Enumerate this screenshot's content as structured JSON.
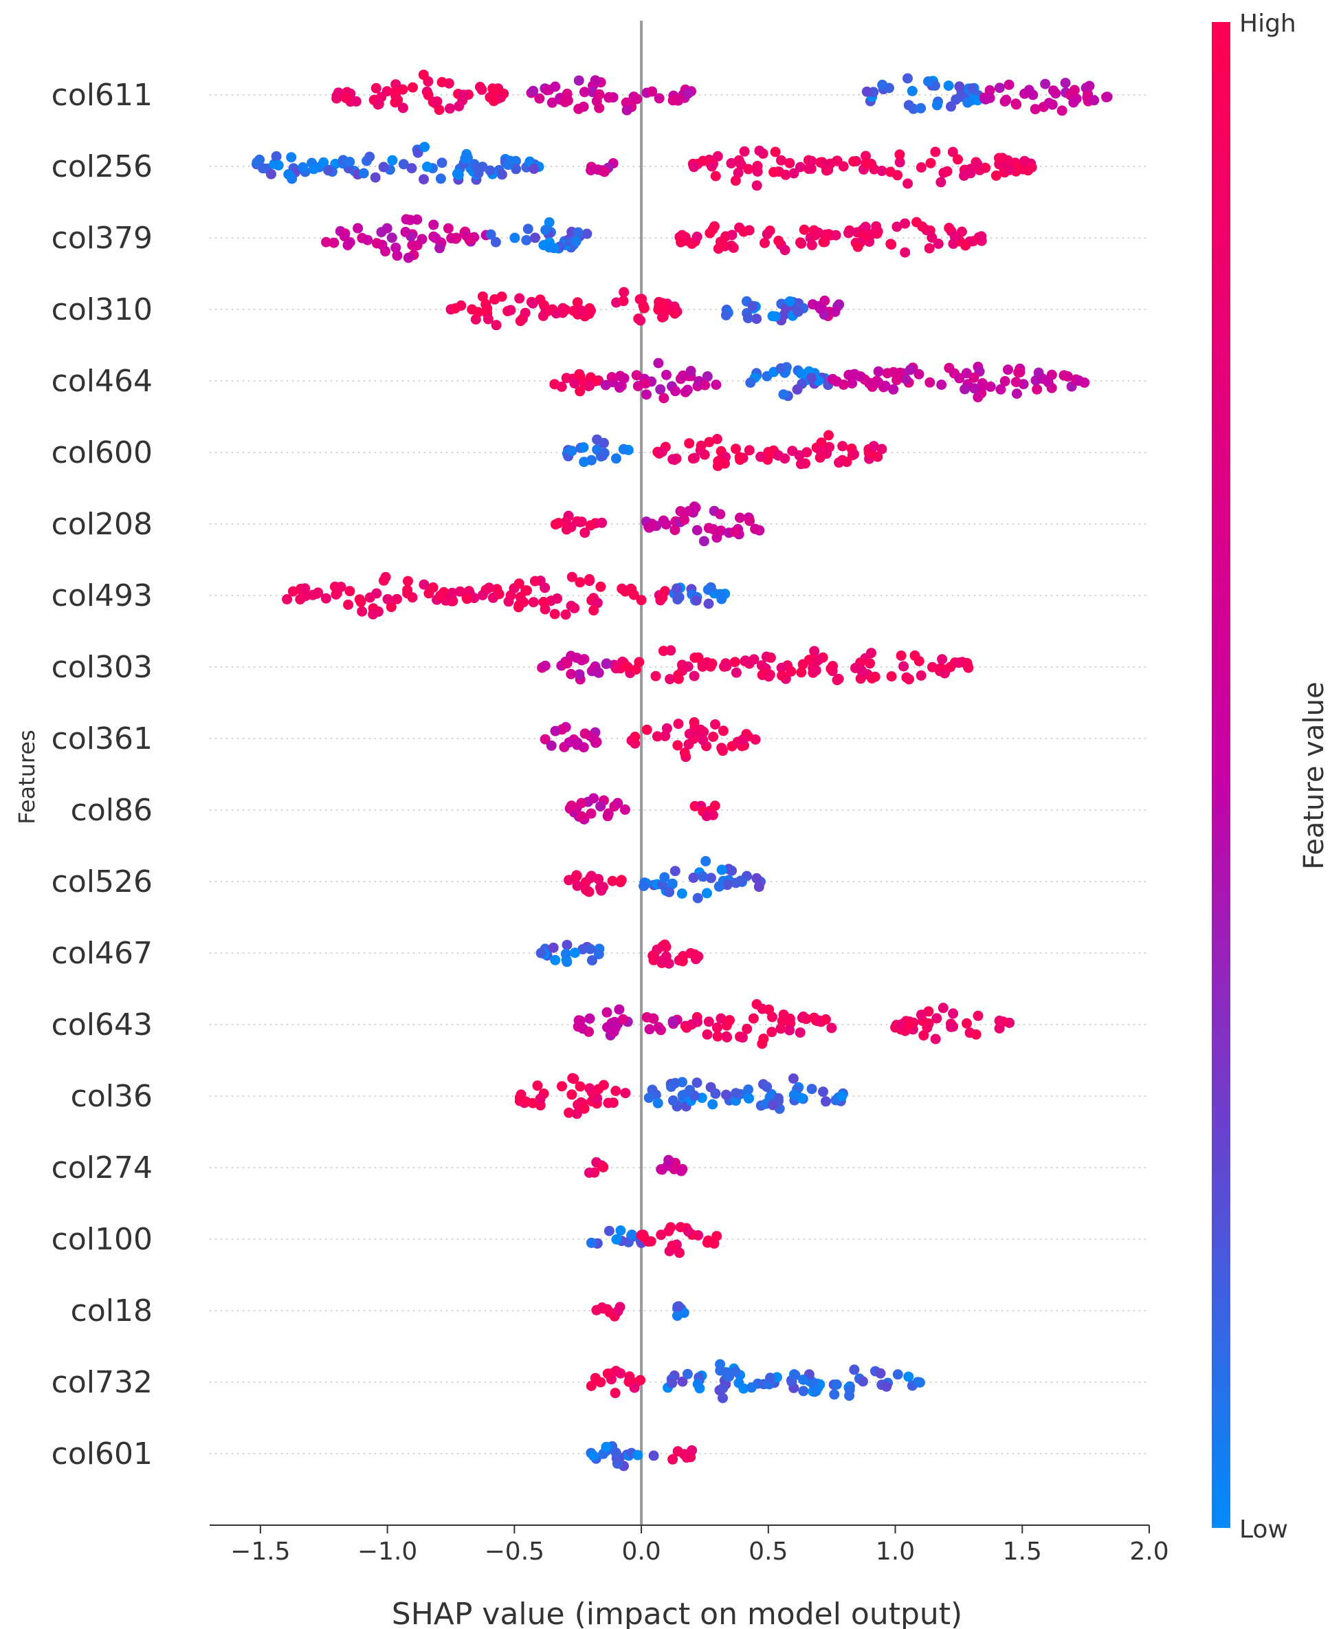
{
  "chart_data": {
    "type": "scatter",
    "subtype": "beeswarm",
    "xlabel": "SHAP value (impact on model output)",
    "ylabel": "Features",
    "xlim": [
      -1.7,
      2.0
    ],
    "xticks": [
      "−1.5",
      "−1.0",
      "−0.5",
      "0.0",
      "0.5",
      "1.0",
      "1.5",
      "2.0"
    ],
    "xtick_values": [
      -1.5,
      -1.0,
      -0.5,
      0.0,
      0.5,
      1.0,
      1.5,
      2.0
    ],
    "colorbar": {
      "label": "Feature value",
      "high": "High",
      "low": "Low",
      "high_color": "#ff0052",
      "low_color": "#008bfb"
    },
    "grid": false,
    "zero_line_color": "#999999",
    "features": [
      {
        "name": "col611",
        "clusters": [
          [
            -1.2,
            -0.5,
            "high"
          ],
          [
            -0.45,
            0.2,
            "mid"
          ],
          [
            0.85,
            1.35,
            "low"
          ],
          [
            1.35,
            1.85,
            "mid"
          ]
        ]
      },
      {
        "name": "col256",
        "clusters": [
          [
            -1.55,
            -1.25,
            "low"
          ],
          [
            -1.25,
            -0.4,
            "low"
          ],
          [
            -0.2,
            -0.1,
            "mid"
          ],
          [
            0.2,
            0.7,
            "high"
          ],
          [
            0.7,
            1.55,
            "high"
          ]
        ]
      },
      {
        "name": "col379",
        "clusters": [
          [
            -1.25,
            -0.6,
            "mid"
          ],
          [
            -0.6,
            -0.2,
            "low"
          ],
          [
            0.15,
            0.75,
            "high"
          ],
          [
            0.75,
            1.35,
            "high"
          ]
        ]
      },
      {
        "name": "col310",
        "clusters": [
          [
            -0.75,
            -0.3,
            "high"
          ],
          [
            -0.3,
            0.15,
            "high"
          ],
          [
            0.3,
            0.65,
            "low"
          ],
          [
            0.65,
            0.8,
            "mid"
          ]
        ]
      },
      {
        "name": "col464",
        "clusters": [
          [
            -0.35,
            -0.15,
            "high"
          ],
          [
            -0.15,
            0.3,
            "mid"
          ],
          [
            0.4,
            0.75,
            "low"
          ],
          [
            0.75,
            1.75,
            "mid"
          ]
        ]
      },
      {
        "name": "col600",
        "clusters": [
          [
            -0.3,
            -0.05,
            "low"
          ],
          [
            0.05,
            0.45,
            "high"
          ],
          [
            0.45,
            0.95,
            "high"
          ]
        ]
      },
      {
        "name": "col208",
        "clusters": [
          [
            -0.35,
            -0.15,
            "high"
          ],
          [
            0.0,
            0.5,
            "mid"
          ]
        ]
      },
      {
        "name": "col493",
        "clusters": [
          [
            -1.4,
            -0.7,
            "high"
          ],
          [
            -0.7,
            0.1,
            "high"
          ],
          [
            0.1,
            0.35,
            "low"
          ]
        ]
      },
      {
        "name": "col303",
        "clusters": [
          [
            -0.4,
            -0.1,
            "mid"
          ],
          [
            -0.1,
            0.3,
            "high"
          ],
          [
            0.3,
            1.3,
            "high"
          ]
        ]
      },
      {
        "name": "col361",
        "clusters": [
          [
            -0.4,
            -0.15,
            "mid"
          ],
          [
            -0.05,
            0.45,
            "high"
          ]
        ]
      },
      {
        "name": "col86",
        "clusters": [
          [
            -0.3,
            -0.05,
            "mid"
          ],
          [
            0.2,
            0.3,
            "high"
          ]
        ]
      },
      {
        "name": "col526",
        "clusters": [
          [
            -0.3,
            -0.05,
            "high"
          ],
          [
            0.0,
            0.5,
            "low"
          ]
        ]
      },
      {
        "name": "col467",
        "clusters": [
          [
            -0.4,
            -0.15,
            "low"
          ],
          [
            0.0,
            0.25,
            "high"
          ]
        ]
      },
      {
        "name": "col643",
        "clusters": [
          [
            -0.25,
            0.15,
            "mid"
          ],
          [
            0.15,
            0.75,
            "high"
          ],
          [
            1.0,
            1.45,
            "high"
          ]
        ]
      },
      {
        "name": "col36",
        "clusters": [
          [
            -0.5,
            -0.05,
            "high"
          ],
          [
            0.0,
            0.35,
            "low"
          ],
          [
            0.35,
            0.8,
            "low"
          ]
        ]
      },
      {
        "name": "col274",
        "clusters": [
          [
            -0.22,
            -0.15,
            "high"
          ],
          [
            0.05,
            0.17,
            "mid"
          ]
        ]
      },
      {
        "name": "col100",
        "clusters": [
          [
            -0.2,
            0.0,
            "low"
          ],
          [
            0.0,
            0.3,
            "high"
          ]
        ]
      },
      {
        "name": "col18",
        "clusters": [
          [
            -0.18,
            -0.07,
            "high"
          ],
          [
            0.12,
            0.17,
            "low"
          ]
        ]
      },
      {
        "name": "col732",
        "clusters": [
          [
            -0.2,
            0.0,
            "high"
          ],
          [
            0.08,
            0.5,
            "low"
          ],
          [
            0.5,
            1.1,
            "low"
          ]
        ]
      },
      {
        "name": "col601",
        "clusters": [
          [
            -0.2,
            0.05,
            "low"
          ],
          [
            0.1,
            0.2,
            "high"
          ]
        ]
      }
    ]
  }
}
